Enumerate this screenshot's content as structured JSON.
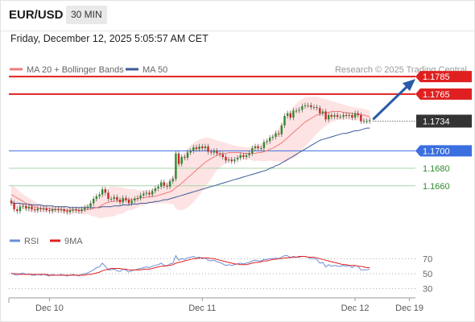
{
  "header": {
    "symbol": "EUR/USD",
    "timeframe": "30 MIN"
  },
  "datetime": "Friday, December 12, 2025 5:05:57 AM CET",
  "legend": [
    {
      "label": "MA 20 + Bollinger Bands",
      "color": "#f07c7c"
    },
    {
      "label": "MA 50",
      "color": "#3c5a99"
    }
  ],
  "source": "Research © 2025 Trading Central",
  "rsi_legend": [
    {
      "label": "RSI",
      "color": "#6b8fd6"
    },
    {
      "label": "9MA",
      "color": "#e02020"
    }
  ],
  "chart_data": [
    {
      "type": "candlestick",
      "ylim": [
        1.161,
        1.181
      ],
      "x_tick_labels": [
        "Dec 10",
        "Dec 11",
        "Dec 12",
        "Dec 19"
      ],
      "levels": [
        {
          "value": 1.1785,
          "label": "1.1785",
          "color": "#e02020",
          "style": "resistance"
        },
        {
          "value": 1.1765,
          "label": "1.1765",
          "color": "#e02020",
          "style": "resistance"
        },
        {
          "value": 1.1734,
          "label": "1.1734",
          "color": "#333333",
          "style": "last-price"
        },
        {
          "value": 1.17,
          "label": "1.1700",
          "color": "#3b6fe0",
          "style": "pivot"
        },
        {
          "value": 1.168,
          "label": "1.1680",
          "color": "#2e8b2e",
          "style": "support"
        },
        {
          "value": 1.166,
          "label": "1.1660",
          "color": "#2e8b2e",
          "style": "support"
        }
      ],
      "close": [
        1.164,
        1.1633,
        1.1631,
        1.1636,
        1.1637,
        1.1634,
        1.1636,
        1.1633,
        1.1632,
        1.1634,
        1.1633,
        1.1634,
        1.1632,
        1.1631,
        1.1633,
        1.1633,
        1.1632,
        1.1633,
        1.1631,
        1.163,
        1.1632,
        1.1633,
        1.1632,
        1.1631,
        1.1633,
        1.1635,
        1.1636,
        1.164,
        1.1645,
        1.1648,
        1.165,
        1.1656,
        1.1652,
        1.1645,
        1.1645,
        1.1647,
        1.1644,
        1.1641,
        1.1646,
        1.1644,
        1.164,
        1.1643,
        1.1645,
        1.1646,
        1.1649,
        1.1651,
        1.1652,
        1.165,
        1.1654,
        1.1657,
        1.1659,
        1.1664,
        1.166,
        1.1659,
        1.1665,
        1.1668,
        1.1697,
        1.1685,
        1.1693,
        1.1692,
        1.1698,
        1.17,
        1.1704,
        1.1702,
        1.1705,
        1.1703,
        1.1705,
        1.1699,
        1.1698,
        1.17,
        1.1697,
        1.1696,
        1.1693,
        1.1689,
        1.169,
        1.1688,
        1.169,
        1.1692,
        1.1695,
        1.1693,
        1.1695,
        1.1697,
        1.1703,
        1.1705,
        1.1703,
        1.1703,
        1.171,
        1.1711,
        1.1715,
        1.1716,
        1.172,
        1.1719,
        1.1729,
        1.174,
        1.1743,
        1.1738,
        1.1746,
        1.1746,
        1.1747,
        1.1751,
        1.1752,
        1.1752,
        1.175,
        1.175,
        1.1749,
        1.1743,
        1.1745,
        1.1736,
        1.1741,
        1.1739,
        1.1741,
        1.1739,
        1.1739,
        1.1741,
        1.174,
        1.1741,
        1.1738,
        1.1743,
        1.1741,
        1.1734,
        1.1734,
        1.1734,
        1.1735
      ],
      "ma20": [
        1.165,
        1.1648,
        1.1646,
        1.1644,
        1.1642,
        1.164,
        1.1638,
        1.1637,
        1.1636,
        1.1635,
        1.1634,
        1.1634,
        1.1634,
        1.1634,
        1.1633,
        1.1633,
        1.1633,
        1.1633,
        1.1632,
        1.1632,
        1.1632,
        1.1632,
        1.1632,
        1.1632,
        1.1632,
        1.1632,
        1.1633,
        1.1633,
        1.1634,
        1.1635,
        1.1636,
        1.1638,
        1.164,
        1.1641,
        1.1642,
        1.1642,
        1.1643,
        1.1643,
        1.1643,
        1.1644,
        1.1644,
        1.1644,
        1.1645,
        1.1645,
        1.1646,
        1.1646,
        1.1647,
        1.1647,
        1.1648,
        1.1648,
        1.1649,
        1.165,
        1.1651,
        1.1652,
        1.1653,
        1.1655,
        1.1658,
        1.166,
        1.1663,
        1.1666,
        1.1669,
        1.1672,
        1.1675,
        1.1678,
        1.1681,
        1.1684,
        1.1687,
        1.1689,
        1.1691,
        1.1693,
        1.1695,
        1.1696,
        1.1697,
        1.1697,
        1.1698,
        1.1698,
        1.1698,
        1.1698,
        1.1698,
        1.1697,
        1.1697,
        1.1697,
        1.1697,
        1.1697,
        1.1698,
        1.1698,
        1.1699,
        1.17,
        1.1702,
        1.1703,
        1.1705,
        1.1707,
        1.1709,
        1.1712,
        1.1715,
        1.1718,
        1.1721,
        1.1724,
        1.1727,
        1.173,
        1.1733,
        1.1735,
        1.1737,
        1.1739,
        1.1741,
        1.1742,
        1.1743,
        1.1744,
        1.1744,
        1.1745,
        1.1745,
        1.1745,
        1.1745,
        1.1744,
        1.1744,
        1.1743,
        1.1743,
        1.1742,
        1.1742,
        1.1741,
        1.1741,
        1.174,
        1.1739
      ],
      "ma50": [
        1.1641,
        1.164,
        1.164,
        1.164,
        1.1639,
        1.1639,
        1.1639,
        1.1638,
        1.1638,
        1.1638,
        1.1638,
        1.1637,
        1.1637,
        1.1637,
        1.1637,
        1.1636,
        1.1636,
        1.1636,
        1.1636,
        1.1636,
        1.1635,
        1.1635,
        1.1635,
        1.1635,
        1.1635,
        1.1635,
        1.1635,
        1.1635,
        1.1635,
        1.1635,
        1.1635,
        1.1636,
        1.1636,
        1.1636,
        1.1636,
        1.1637,
        1.1637,
        1.1637,
        1.1638,
        1.1638,
        1.1638,
        1.1639,
        1.1639,
        1.1639,
        1.164,
        1.164,
        1.164,
        1.1641,
        1.1641,
        1.1642,
        1.1642,
        1.1643,
        1.1644,
        1.1644,
        1.1645,
        1.1646,
        1.1647,
        1.1648,
        1.1649,
        1.165,
        1.1651,
        1.1652,
        1.1653,
        1.1654,
        1.1655,
        1.1656,
        1.1657,
        1.1658,
        1.1659,
        1.166,
        1.1661,
        1.1662,
        1.1663,
        1.1664,
        1.1665,
        1.1666,
        1.1667,
        1.1668,
        1.1669,
        1.167,
        1.1671,
        1.1672,
        1.1673,
        1.1674,
        1.1675,
        1.1676,
        1.1677,
        1.1678,
        1.168,
        1.1681,
        1.1683,
        1.1684,
        1.1686,
        1.1688,
        1.169,
        1.1692,
        1.1694,
        1.1696,
        1.1698,
        1.17,
        1.1702,
        1.1704,
        1.1706,
        1.1708,
        1.171,
        1.1712,
        1.1713,
        1.1714,
        1.1715,
        1.1716,
        1.1717,
        1.1718,
        1.1719,
        1.172,
        1.172,
        1.1721,
        1.1722,
        1.1723,
        1.1723,
        1.1724,
        1.1725,
        1.1726,
        1.1726
      ],
      "bb_upper": [
        1.1662,
        1.1659,
        1.1656,
        1.1653,
        1.165,
        1.1648,
        1.1646,
        1.1644,
        1.1642,
        1.164,
        1.1639,
        1.1638,
        1.1638,
        1.1637,
        1.1637,
        1.1637,
        1.1637,
        1.1636,
        1.1636,
        1.1636,
        1.1636,
        1.1636,
        1.1636,
        1.1636,
        1.1636,
        1.1637,
        1.1638,
        1.164,
        1.1643,
        1.1646,
        1.1649,
        1.1653,
        1.1656,
        1.1658,
        1.1659,
        1.1659,
        1.1659,
        1.1658,
        1.1658,
        1.1657,
        1.1656,
        1.1656,
        1.1656,
        1.1655,
        1.1655,
        1.1655,
        1.1655,
        1.1655,
        1.1656,
        1.1657,
        1.1658,
        1.166,
        1.1662,
        1.1664,
        1.1667,
        1.1671,
        1.1682,
        1.1688,
        1.1694,
        1.1699,
        1.1703,
        1.1706,
        1.1709,
        1.1711,
        1.1713,
        1.1714,
        1.1715,
        1.1715,
        1.1714,
        1.1713,
        1.1712,
        1.1711,
        1.171,
        1.1709,
        1.1708,
        1.1707,
        1.1706,
        1.1705,
        1.1705,
        1.1704,
        1.1704,
        1.1704,
        1.1705,
        1.1706,
        1.1707,
        1.1708,
        1.171,
        1.1712,
        1.1715,
        1.1718,
        1.1722,
        1.1726,
        1.1731,
        1.1737,
        1.1742,
        1.1746,
        1.1751,
        1.1754,
        1.1757,
        1.1759,
        1.1761,
        1.1762,
        1.1762,
        1.1762,
        1.1762,
        1.1761,
        1.176,
        1.1759,
        1.1758,
        1.1757,
        1.1756,
        1.1755,
        1.1754,
        1.1753,
        1.1752,
        1.1751,
        1.175,
        1.175,
        1.1749,
        1.1749,
        1.1748,
        1.1747,
        1.1746
      ],
      "bb_lower": [
        1.1638,
        1.1637,
        1.1636,
        1.1635,
        1.1634,
        1.1632,
        1.163,
        1.163,
        1.163,
        1.163,
        1.1629,
        1.163,
        1.163,
        1.1631,
        1.1629,
        1.1629,
        1.1629,
        1.163,
        1.1628,
        1.1628,
        1.1628,
        1.1628,
        1.1628,
        1.1628,
        1.1628,
        1.1627,
        1.1628,
        1.1626,
        1.1625,
        1.1624,
        1.1623,
        1.1623,
        1.1624,
        1.1624,
        1.1625,
        1.1625,
        1.1627,
        1.1628,
        1.1628,
        1.1631,
        1.1632,
        1.1632,
        1.1634,
        1.1635,
        1.1637,
        1.1637,
        1.1639,
        1.1639,
        1.164,
        1.1639,
        1.164,
        1.164,
        1.164,
        1.164,
        1.1639,
        1.1639,
        1.1634,
        1.1632,
        1.1632,
        1.1633,
        1.1635,
        1.1638,
        1.1641,
        1.1645,
        1.1649,
        1.1654,
        1.1659,
        1.1663,
        1.1668,
        1.1673,
        1.1678,
        1.1681,
        1.1684,
        1.1685,
        1.1688,
        1.1689,
        1.169,
        1.1691,
        1.1691,
        1.169,
        1.169,
        1.169,
        1.1689,
        1.1688,
        1.1689,
        1.1688,
        1.1688,
        1.1688,
        1.1689,
        1.1688,
        1.1688,
        1.1688,
        1.1687,
        1.1687,
        1.1688,
        1.169,
        1.1691,
        1.1694,
        1.1697,
        1.1701,
        1.1705,
        1.1708,
        1.1712,
        1.1716,
        1.172,
        1.1723,
        1.1726,
        1.1729,
        1.173,
        1.1733,
        1.1734,
        1.1735,
        1.1736,
        1.1735,
        1.1736,
        1.1735,
        1.1736,
        1.1735,
        1.1735,
        1.1733,
        1.1733,
        1.1733,
        1.1732
      ]
    },
    {
      "type": "line",
      "name": "RSI",
      "ylim": [
        20,
        80
      ],
      "y_tick_labels": [
        "70",
        "50",
        "30"
      ],
      "reference_levels": [
        70,
        50,
        30
      ],
      "series": [
        {
          "name": "RSI",
          "color": "#6b8fd6",
          "values": [
            51,
            49,
            48,
            50,
            51,
            49,
            50,
            48,
            48,
            49,
            48,
            49,
            48,
            47,
            49,
            48,
            48,
            49,
            48,
            47,
            48,
            49,
            48,
            47,
            49,
            50,
            51,
            53,
            55,
            58,
            59,
            64,
            60,
            55,
            55,
            56,
            54,
            53,
            56,
            55,
            52,
            54,
            55,
            56,
            57,
            58,
            59,
            58,
            60,
            61,
            62,
            64,
            61,
            60,
            63,
            64,
            74,
            68,
            70,
            69,
            71,
            72,
            73,
            71,
            72,
            70,
            71,
            68,
            67,
            68,
            66,
            65,
            63,
            61,
            62,
            61,
            62,
            63,
            64,
            63,
            64,
            65,
            67,
            68,
            67,
            67,
            69,
            69,
            70,
            70,
            71,
            70,
            72,
            74,
            74,
            71,
            73,
            72,
            72,
            73,
            73,
            72,
            70,
            70,
            69,
            64,
            65,
            59,
            62,
            60,
            61,
            60,
            60,
            61,
            60,
            61,
            58,
            61,
            60,
            55,
            55,
            55,
            56
          ]
        },
        {
          "name": "9MA",
          "color": "#e02020",
          "values": [
            50,
            50,
            50,
            49,
            49,
            49,
            49,
            49,
            49,
            49,
            49,
            49,
            49,
            48,
            48,
            48,
            48,
            48,
            48,
            48,
            48,
            48,
            48,
            48,
            48,
            48,
            49,
            49,
            50,
            51,
            52,
            54,
            55,
            56,
            57,
            57,
            57,
            57,
            56,
            56,
            55,
            55,
            55,
            55,
            55,
            56,
            56,
            56,
            57,
            58,
            59,
            60,
            60,
            61,
            61,
            62,
            64,
            65,
            66,
            67,
            68,
            69,
            70,
            70,
            71,
            71,
            71,
            71,
            70,
            70,
            69,
            68,
            67,
            66,
            65,
            64,
            63,
            63,
            62,
            62,
            62,
            63,
            64,
            65,
            65,
            66,
            67,
            67,
            68,
            69,
            69,
            70,
            70,
            71,
            71,
            72,
            72,
            72,
            73,
            73,
            73,
            72,
            72,
            72,
            71,
            70,
            69,
            68,
            67,
            66,
            65,
            64,
            63,
            62,
            62,
            61,
            61,
            61,
            60,
            60,
            59,
            58,
            58
          ]
        }
      ]
    }
  ]
}
